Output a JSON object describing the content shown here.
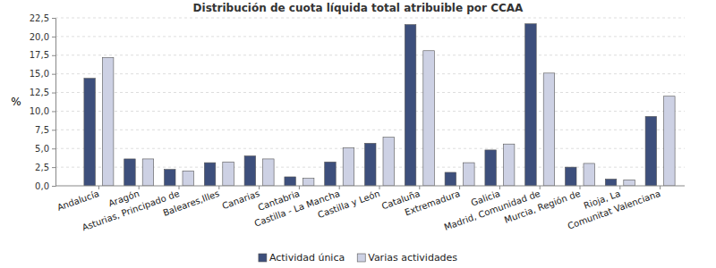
{
  "chart_data": {
    "type": "bar",
    "title": "Distribución de cuota líquida total atribuible por CCAA",
    "y_label": "%",
    "categories": [
      "Andalucía",
      "Aragón",
      "Asturias, Principado de",
      "Baleares,Illes",
      "Canarias",
      "Cantabria",
      "Castilla - La Mancha",
      "Castilla y León",
      "Cataluña",
      "Extremadura",
      "Galicia",
      "Madrid, Comunidad de",
      "Murcia, Región de",
      "Rioja, La",
      "Comunitat Valenciana"
    ],
    "series": [
      {
        "name": "Actividad única",
        "color": "#3d4f7c",
        "values": [
          14.4,
          3.6,
          2.2,
          3.1,
          4.0,
          1.2,
          3.2,
          5.7,
          21.6,
          1.8,
          4.8,
          21.7,
          2.5,
          0.9,
          9.3
        ]
      },
      {
        "name": "Varias actividades",
        "color": "#cdd1e4",
        "values": [
          17.2,
          3.6,
          2.0,
          3.2,
          3.6,
          1.0,
          5.1,
          6.5,
          18.1,
          3.1,
          5.6,
          15.1,
          3.0,
          0.8,
          12.0
        ]
      }
    ],
    "ylim": [
      0,
      22.5
    ],
    "yticks": [
      {
        "value": 0,
        "label": "0,0"
      },
      {
        "value": 2.5,
        "label": "2,5"
      },
      {
        "value": 5,
        "label": "5,0"
      },
      {
        "value": 7.5,
        "label": "7,5"
      },
      {
        "value": 10,
        "label": "10,0"
      },
      {
        "value": 12.5,
        "label": "12,5"
      },
      {
        "value": 15,
        "label": "15,0"
      },
      {
        "value": 17.5,
        "label": "17,5"
      },
      {
        "value": 20,
        "label": "20,0"
      },
      {
        "value": 22.5,
        "label": "22,5"
      }
    ],
    "grid": true,
    "legend": "bottom"
  }
}
